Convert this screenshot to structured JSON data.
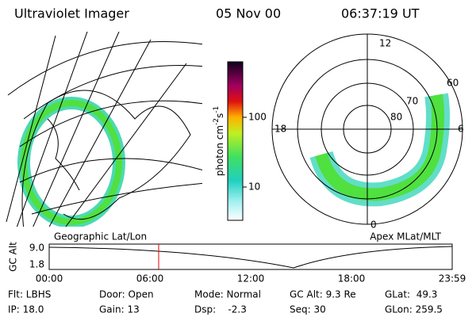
{
  "header": {
    "title": "Ultraviolet Imager",
    "date": "05 Nov 00",
    "time": "06:37:19 UT"
  },
  "colorbar": {
    "label_parts": [
      "photon cm",
      "-2",
      "s",
      "-1"
    ],
    "ticks": [
      "100",
      "10"
    ]
  },
  "left_map": {
    "caption": "Geographic Lat/Lon"
  },
  "polar_plot": {
    "caption": "Apex MLat/MLT",
    "mlt_labels": [
      "12",
      "18",
      "6",
      "0"
    ],
    "lat_labels": [
      "60",
      "70",
      "80"
    ]
  },
  "alt_plot": {
    "ylabel": "GC Alt",
    "yticks": [
      "9.0",
      "1.8"
    ],
    "xticks": [
      "00:00",
      "06:00",
      "12:00",
      "18:00",
      "23:59"
    ]
  },
  "info": [
    [
      "Flt: LBHS",
      "Door: Open",
      "Mode: Normal",
      "GC Alt: 9.3 Re",
      "GLat:  49.3"
    ],
    [
      "IP: 18.0",
      "Gain: 13",
      "Dsp:    -2.3",
      "Seq: 30",
      "GLon: 259.5"
    ]
  ]
}
